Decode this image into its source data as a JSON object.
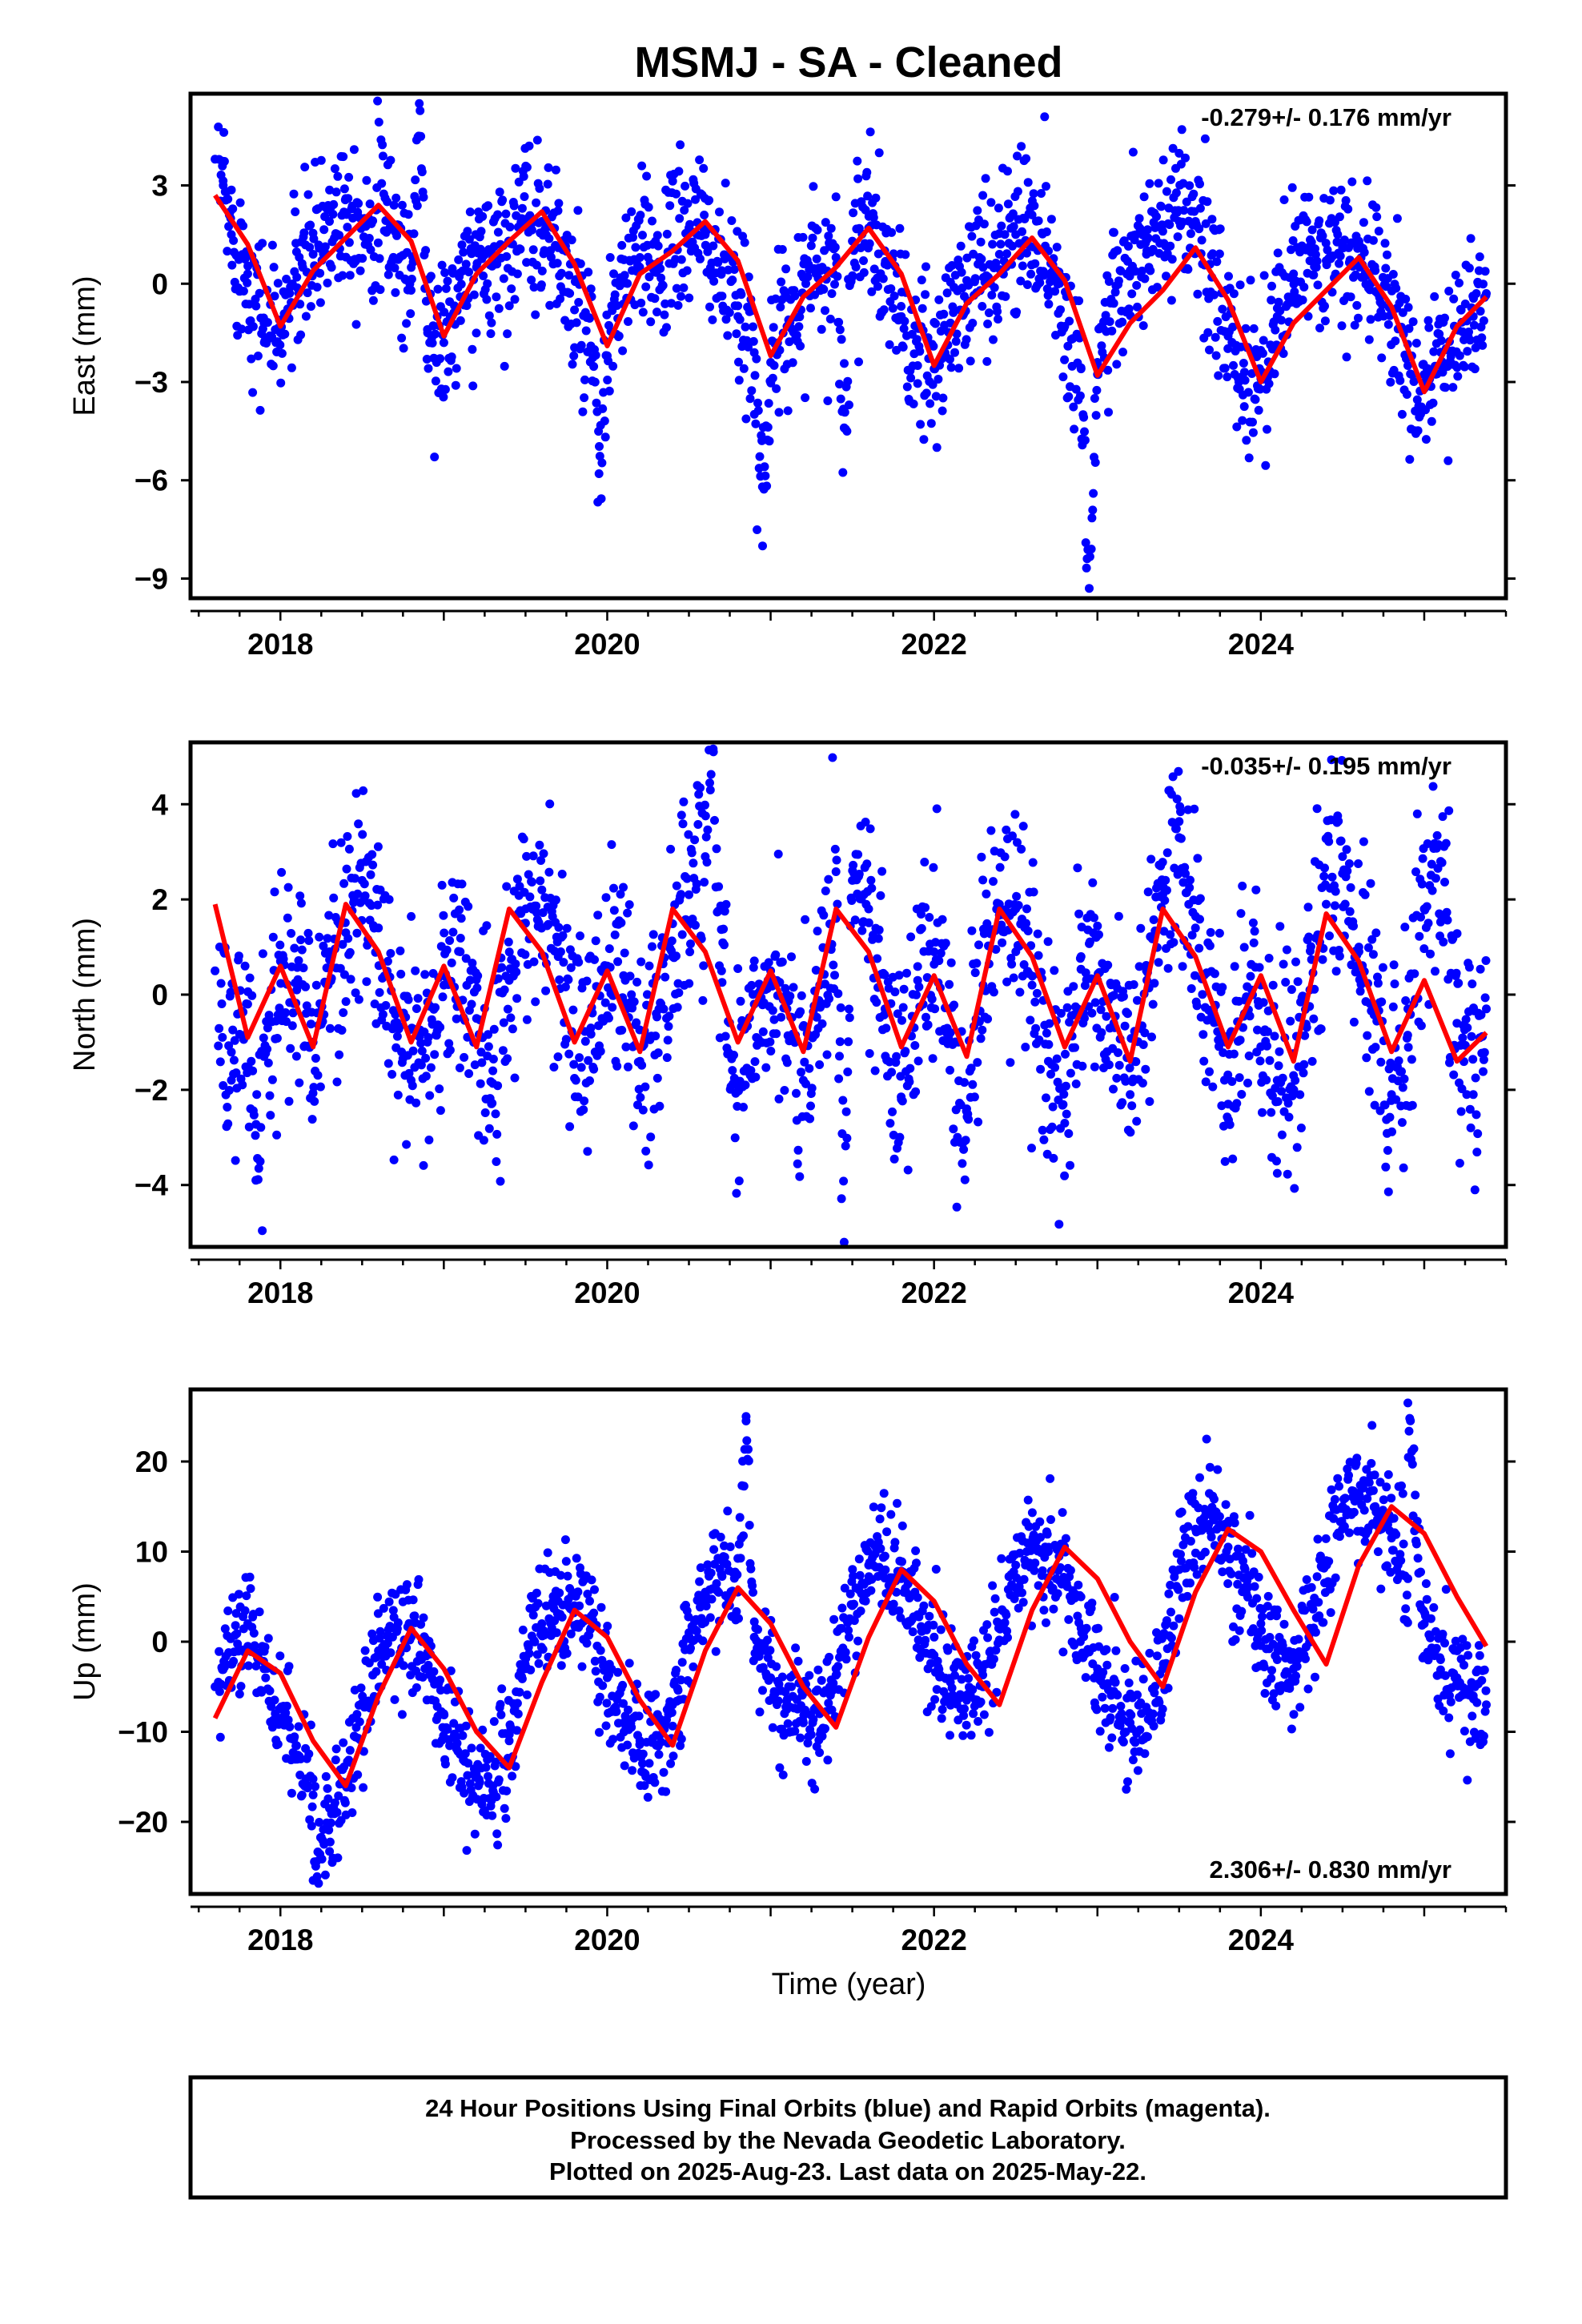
{
  "title": "MSMJ  - SA - Cleaned",
  "xlabel": "Time (year)",
  "footer": {
    "line1": "24 Hour Positions Using Final Orbits (blue) and Rapid Orbits (magenta).",
    "line2": "Processed by the Nevada Geodetic Laboratory.",
    "line3": "Plotted on 2025-Aug-23. Last data on 2025-May-22."
  },
  "colors": {
    "points": "#0000ff",
    "model": "#ff0000",
    "frame": "#000000"
  },
  "chart_data": [
    {
      "type": "scatter",
      "component": "east",
      "ylabel": "East (mm)",
      "rate": "-0.279+/- 0.176 mm/yr",
      "rate_position": "top-right",
      "xlim": [
        2017.45,
        2025.5
      ],
      "ylim": [
        -9.6,
        5.8
      ],
      "xticks": [
        2018,
        2020,
        2022,
        2024
      ],
      "yticks": [
        3,
        0,
        -3,
        -6,
        -9
      ],
      "series": [
        {
          "kind": "points",
          "x": [
            2017.6,
            2017.65,
            2017.7,
            2017.8,
            2017.9,
            2018.0,
            2018.1,
            2018.2,
            2018.3,
            2018.4,
            2018.5,
            2018.6,
            2018.7,
            2018.8,
            2018.9,
            2019.0,
            2019.1,
            2019.2,
            2019.3,
            2019.4,
            2019.5,
            2019.6,
            2019.7,
            2019.8,
            2019.9,
            2020.0,
            2020.1,
            2020.2,
            2020.3,
            2020.4,
            2020.5,
            2020.6,
            2020.7,
            2020.8,
            2020.9,
            2021.0,
            2021.1,
            2021.2,
            2021.3,
            2021.4,
            2021.5,
            2021.6,
            2021.7,
            2021.8,
            2021.9,
            2022.0,
            2022.1,
            2022.2,
            2022.3,
            2022.4,
            2022.5,
            2022.6,
            2022.7,
            2022.8,
            2022.9,
            2023.0,
            2023.1,
            2023.2,
            2023.3,
            2023.4,
            2023.5,
            2023.6,
            2023.7,
            2023.8,
            2023.9,
            2024.0,
            2024.1,
            2024.2,
            2024.3,
            2024.4,
            2024.5,
            2024.6,
            2024.7,
            2024.8,
            2024.9,
            2025.0,
            2025.1,
            2025.2,
            2025.3,
            2025.38,
            2018.85,
            2022.95,
            2020.95,
            2019.95,
            2021.45
          ],
          "y": [
            3.8,
            3.0,
            1.5,
            0.3,
            -1.2,
            -1.5,
            0.2,
            0.9,
            1.9,
            2.6,
            1.8,
            2.3,
            1.6,
            -0.2,
            -1.4,
            -1.8,
            -0.4,
            0.5,
            0.9,
            1.3,
            1.9,
            1.9,
            1.1,
            -0.8,
            -1.9,
            -2.2,
            0.1,
            0.8,
            0.6,
            1.1,
            1.7,
            1.5,
            0.4,
            -1.0,
            -2.1,
            -2.4,
            -1.3,
            0.2,
            0.4,
            0.8,
            1.3,
            1.7,
            0.6,
            -1.0,
            -2.5,
            -2.6,
            -1.2,
            0.1,
            0.5,
            0.9,
            1.5,
            2.1,
            1.0,
            -1.3,
            -2.6,
            -2.4,
            -0.6,
            0.4,
            0.9,
            1.6,
            1.9,
            1.9,
            0.2,
            -1.6,
            -2.7,
            -2.9,
            -1.0,
            0.3,
            0.7,
            0.7,
            1.1,
            0.6,
            0.4,
            -0.9,
            -2.5,
            -3.2,
            -2.5,
            -1.4,
            -1.0,
            -0.3,
            5.5,
            -9.3,
            -6.2,
            -5.8,
            -4.4
          ]
        },
        {
          "kind": "model",
          "x": [
            2017.6,
            2017.8,
            2018.0,
            2018.2,
            2018.4,
            2018.6,
            2018.8,
            2019.0,
            2019.2,
            2019.4,
            2019.6,
            2019.8,
            2020.0,
            2020.2,
            2020.4,
            2020.6,
            2020.8,
            2021.0,
            2021.2,
            2021.4,
            2021.6,
            2021.8,
            2022.0,
            2022.2,
            2022.4,
            2022.6,
            2022.8,
            2023.0,
            2023.2,
            2023.4,
            2023.6,
            2023.8,
            2024.0,
            2024.2,
            2024.4,
            2024.6,
            2024.8,
            2025.0,
            2025.2,
            2025.38
          ],
          "y": [
            2.7,
            1.2,
            -1.3,
            0.4,
            1.4,
            2.4,
            1.3,
            -1.6,
            0.3,
            1.3,
            2.2,
            0.6,
            -1.9,
            0.3,
            1.0,
            1.9,
            0.7,
            -2.2,
            -0.4,
            0.5,
            1.7,
            0.3,
            -2.5,
            -0.6,
            0.3,
            1.4,
            0.1,
            -2.8,
            -1.2,
            -0.2,
            1.1,
            -0.5,
            -3.0,
            -1.2,
            -0.2,
            0.8,
            -0.7,
            -3.3,
            -1.3,
            -0.4
          ]
        }
      ]
    },
    {
      "type": "scatter",
      "component": "north",
      "ylabel": "North (mm)",
      "rate": "-0.035+/- 0.195 mm/yr",
      "rate_position": "top-right",
      "xlim": [
        2017.45,
        2025.5
      ],
      "ylim": [
        -5.3,
        5.3
      ],
      "xticks": [
        2018,
        2020,
        2022,
        2024
      ],
      "yticks": [
        4,
        2,
        0,
        -2,
        -4
      ],
      "series": [
        {
          "kind": "points",
          "x": [
            2017.6,
            2017.7,
            2017.8,
            2017.9,
            2018.0,
            2018.1,
            2018.2,
            2018.3,
            2018.4,
            2018.5,
            2018.6,
            2018.7,
            2018.8,
            2018.9,
            2019.0,
            2019.1,
            2019.2,
            2019.3,
            2019.4,
            2019.5,
            2019.6,
            2019.7,
            2019.8,
            2019.9,
            2020.0,
            2020.1,
            2020.2,
            2020.3,
            2020.4,
            2020.5,
            2020.6,
            2020.7,
            2020.8,
            2020.9,
            2021.0,
            2021.1,
            2021.2,
            2021.3,
            2021.4,
            2021.5,
            2021.6,
            2021.7,
            2021.8,
            2021.9,
            2022.0,
            2022.1,
            2022.2,
            2022.3,
            2022.4,
            2022.5,
            2022.6,
            2022.7,
            2022.8,
            2022.9,
            2023.0,
            2023.1,
            2023.2,
            2023.3,
            2023.4,
            2023.5,
            2023.6,
            2023.7,
            2023.8,
            2023.9,
            2024.0,
            2024.1,
            2024.2,
            2024.3,
            2024.4,
            2024.5,
            2024.6,
            2024.7,
            2024.8,
            2024.9,
            2025.0,
            2025.1,
            2025.2,
            2025.3,
            2025.38,
            2020.65,
            2021.45,
            2017.85
          ],
          "y": [
            0.5,
            -1.8,
            -0.2,
            -1.3,
            0.7,
            0.1,
            -1.0,
            0.9,
            1.3,
            2.4,
            1.4,
            -0.6,
            -1.8,
            -1.0,
            0.2,
            0.9,
            -0.5,
            -1.6,
            0.3,
            1.5,
            2.2,
            0.8,
            -0.9,
            -0.7,
            0.6,
            0.4,
            -1.4,
            -0.4,
            0.8,
            2.1,
            2.9,
            0.5,
            -1.9,
            -0.2,
            0.5,
            -0.3,
            -1.8,
            0.2,
            1.6,
            2.4,
            1.8,
            -0.3,
            -2.2,
            0.3,
            0.9,
            -0.8,
            -2.4,
            0.2,
            1.9,
            1.8,
            0.2,
            -1.4,
            -2.7,
            0.8,
            0.3,
            -0.6,
            -2.1,
            0.5,
            2.1,
            3.3,
            1.4,
            -0.4,
            -2.3,
            -0.4,
            0.2,
            -1.8,
            -1.7,
            0.1,
            1.9,
            2.9,
            1.0,
            -0.4,
            -2.1,
            -0.3,
            1.8,
            2.8,
            -0.6,
            -2.1,
            -0.3,
            5.1,
            -5.2,
            -3.9
          ]
        },
        {
          "kind": "model",
          "x": [
            2017.6,
            2017.8,
            2018.0,
            2018.2,
            2018.4,
            2018.6,
            2018.8,
            2019.0,
            2019.2,
            2019.4,
            2019.6,
            2019.8,
            2020.0,
            2020.2,
            2020.4,
            2020.6,
            2020.8,
            2021.0,
            2021.2,
            2021.4,
            2021.6,
            2021.8,
            2022.0,
            2022.2,
            2022.4,
            2022.6,
            2022.8,
            2023.0,
            2023.2,
            2023.4,
            2023.6,
            2023.8,
            2024.0,
            2024.2,
            2024.4,
            2024.6,
            2024.8,
            2025.0,
            2025.2,
            2025.38
          ],
          "y": [
            1.9,
            -0.9,
            0.6,
            -1.1,
            1.9,
            0.9,
            -1.0,
            0.6,
            -1.1,
            1.8,
            0.9,
            -1.0,
            0.5,
            -1.2,
            1.8,
            0.9,
            -1.0,
            0.5,
            -1.2,
            1.8,
            0.9,
            -1.1,
            0.4,
            -1.3,
            1.8,
            0.8,
            -1.1,
            0.4,
            -1.4,
            1.8,
            0.8,
            -1.1,
            0.4,
            -1.4,
            1.7,
            0.7,
            -1.2,
            0.3,
            -1.4,
            -0.8
          ]
        }
      ]
    },
    {
      "type": "scatter",
      "component": "up",
      "ylabel": "Up (mm)",
      "rate": "2.306+/- 0.830 mm/yr",
      "rate_position": "bottom-right",
      "xlim": [
        2017.45,
        2025.5
      ],
      "ylim": [
        -28,
        28
      ],
      "xticks": [
        2018,
        2020,
        2022,
        2024
      ],
      "yticks": [
        20,
        10,
        0,
        -10,
        -20
      ],
      "series": [
        {
          "kind": "points",
          "x": [
            2017.6,
            2017.7,
            2017.8,
            2017.9,
            2018.0,
            2018.1,
            2018.2,
            2018.3,
            2018.4,
            2018.5,
            2018.6,
            2018.7,
            2018.8,
            2018.9,
            2019.0,
            2019.1,
            2019.2,
            2019.3,
            2019.4,
            2019.5,
            2019.6,
            2019.7,
            2019.8,
            2019.9,
            2020.0,
            2020.1,
            2020.2,
            2020.3,
            2020.4,
            2020.5,
            2020.6,
            2020.7,
            2020.8,
            2020.9,
            2021.0,
            2021.1,
            2021.2,
            2021.3,
            2021.4,
            2021.5,
            2021.6,
            2021.7,
            2021.8,
            2021.9,
            2022.0,
            2022.1,
            2022.2,
            2022.3,
            2022.4,
            2022.5,
            2022.6,
            2022.7,
            2022.8,
            2022.9,
            2023.0,
            2023.1,
            2023.2,
            2023.3,
            2023.4,
            2023.5,
            2023.6,
            2023.7,
            2023.8,
            2023.9,
            2024.0,
            2024.1,
            2024.2,
            2024.3,
            2024.4,
            2024.5,
            2024.6,
            2024.7,
            2024.8,
            2024.9,
            2025.0,
            2025.1,
            2025.2,
            2025.3,
            2025.38,
            2020.85,
            2024.9,
            2018.2
          ],
          "y": [
            -5.0,
            -2.5,
            2.0,
            -3.0,
            -8.5,
            -13.0,
            -17.0,
            -18.5,
            -16.0,
            -7.0,
            -1.0,
            1.5,
            0.5,
            -3.0,
            -8.0,
            -12.5,
            -15.0,
            -16.0,
            -11.0,
            -3.0,
            2.0,
            4.5,
            4.0,
            1.5,
            -4.0,
            -9.0,
            -11.0,
            -11.5,
            -7.0,
            1.0,
            5.5,
            7.5,
            5.5,
            0.5,
            -4.0,
            -7.5,
            -9.0,
            -8.0,
            -3.0,
            4.0,
            8.5,
            9.5,
            7.0,
            3.0,
            -1.5,
            -4.5,
            -6.5,
            -5.0,
            2.0,
            8.5,
            11.0,
            10.0,
            6.5,
            1.5,
            -3.0,
            -5.5,
            -9.0,
            -10.5,
            -3.0,
            8.0,
            12.5,
            14.0,
            10.5,
            6.0,
            2.0,
            -2.0,
            -3.0,
            1.0,
            9.0,
            15.0,
            16.5,
            15.0,
            11.5,
            7.0,
            2.0,
            -2.0,
            -4.0,
            -6.0,
            -7.0,
            24.5,
            26.5,
            -26.5
          ]
        },
        {
          "kind": "model",
          "x": [
            2017.6,
            2017.8,
            2018.0,
            2018.2,
            2018.4,
            2018.6,
            2018.8,
            2019.0,
            2019.2,
            2019.4,
            2019.6,
            2019.8,
            2020.0,
            2020.2,
            2020.4,
            2020.6,
            2020.8,
            2021.0,
            2021.2,
            2021.4,
            2021.6,
            2021.8,
            2022.0,
            2022.2,
            2022.4,
            2022.6,
            2022.8,
            2023.0,
            2023.2,
            2023.4,
            2023.6,
            2023.8,
            2024.0,
            2024.2,
            2024.4,
            2024.6,
            2024.8,
            2025.0,
            2025.2,
            2025.38
          ],
          "y": [
            -8.5,
            -1.0,
            -3.5,
            -11.0,
            -16.0,
            -6.0,
            1.5,
            -3.0,
            -10.0,
            -14.0,
            -4.5,
            3.5,
            0.5,
            -6.5,
            -11.5,
            -1.0,
            6.0,
            2.0,
            -5.0,
            -9.5,
            0.5,
            8.0,
            4.5,
            -2.5,
            -7.0,
            3.5,
            10.5,
            7.0,
            0.0,
            -5.0,
            5.5,
            12.5,
            10.0,
            3.5,
            -2.5,
            8.5,
            15.0,
            12.0,
            5.0,
            -0.5
          ]
        }
      ]
    }
  ]
}
